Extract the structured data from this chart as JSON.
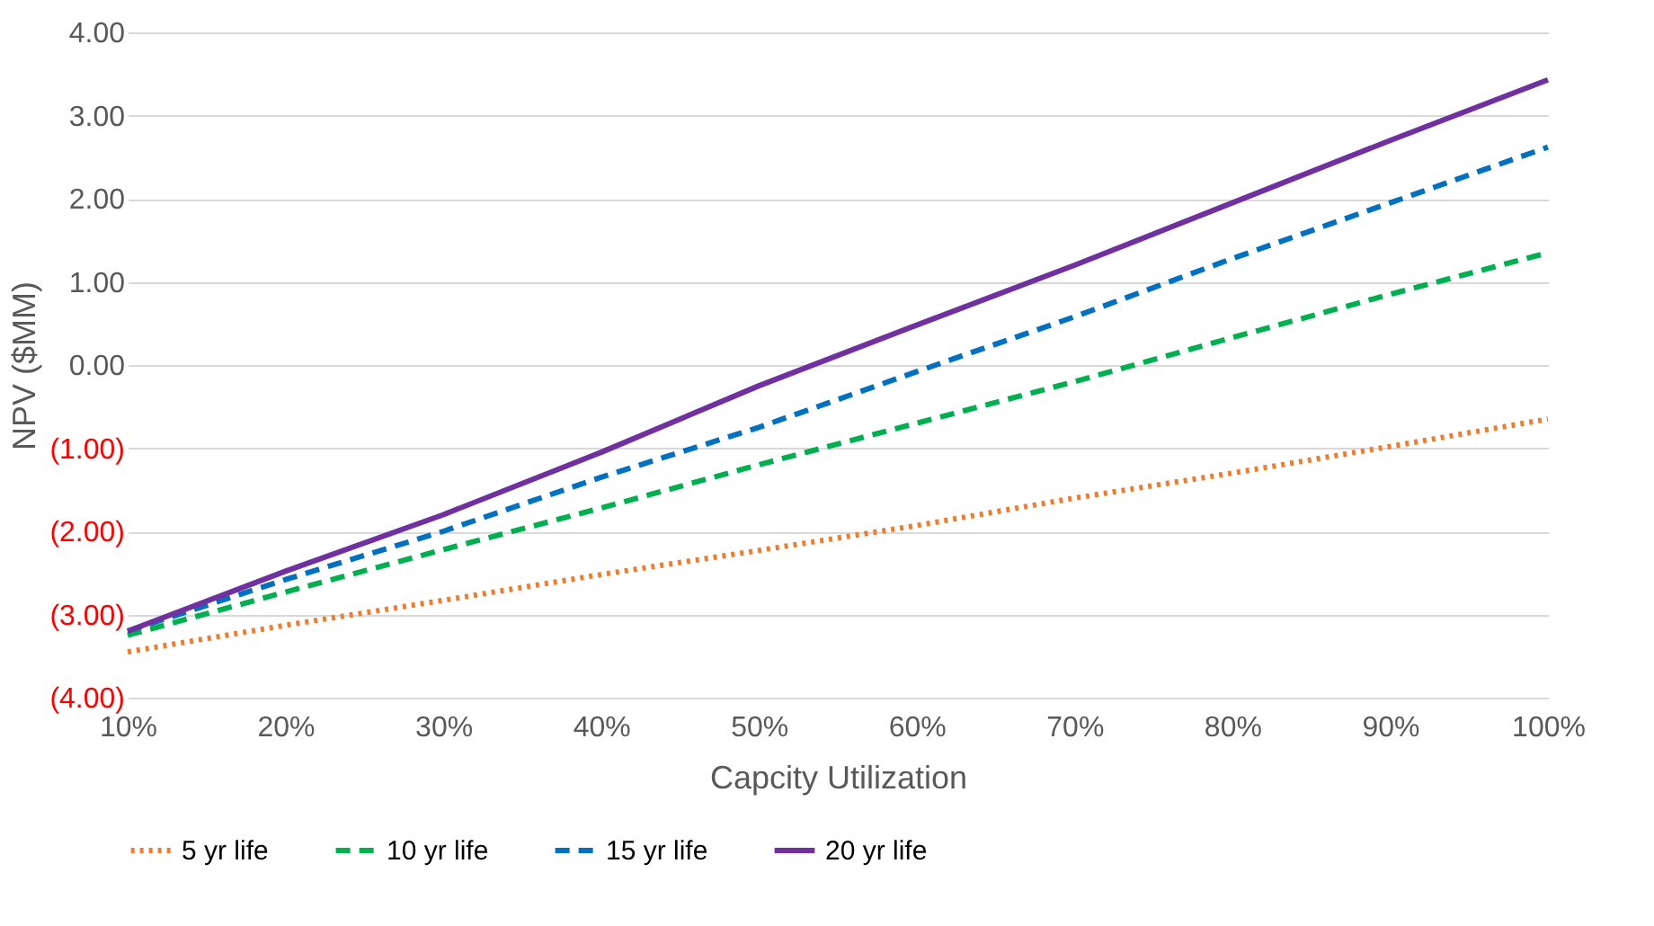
{
  "chart_data": {
    "type": "line",
    "xlabel": "Capcity Utilization",
    "ylabel": "NPV ($MM)",
    "x": [
      10,
      20,
      30,
      40,
      50,
      60,
      70,
      80,
      90,
      100
    ],
    "xlim": [
      10,
      100
    ],
    "xticks": [
      {
        "value": 10,
        "label": "10%"
      },
      {
        "value": 20,
        "label": "20%"
      },
      {
        "value": 30,
        "label": "30%"
      },
      {
        "value": 40,
        "label": "40%"
      },
      {
        "value": 50,
        "label": "50%"
      },
      {
        "value": 60,
        "label": "60%"
      },
      {
        "value": 70,
        "label": "70%"
      },
      {
        "value": 80,
        "label": "80%"
      },
      {
        "value": 90,
        "label": "90%"
      },
      {
        "value": 100,
        "label": "100%"
      }
    ],
    "ylim": [
      -4,
      4
    ],
    "yticks": [
      {
        "value": -4,
        "label": "(4.00)"
      },
      {
        "value": -3,
        "label": "(3.00)"
      },
      {
        "value": -2,
        "label": "(2.00)"
      },
      {
        "value": -1,
        "label": "(1.00)"
      },
      {
        "value": 0,
        "label": "0.00"
      },
      {
        "value": 1,
        "label": "1.00"
      },
      {
        "value": 2,
        "label": "2.00"
      },
      {
        "value": 3,
        "label": "3.00"
      },
      {
        "value": 4,
        "label": "4.00"
      }
    ],
    "series": [
      {
        "name": "5 yr life",
        "color": "#ed7d31",
        "line_style": "dotted",
        "values": [
          -3.45,
          -3.13,
          -2.83,
          -2.52,
          -2.23,
          -1.93,
          -1.6,
          -1.3,
          -0.98,
          -0.65
        ]
      },
      {
        "name": "10 yr life",
        "color": "#00b050",
        "line_style": "dashed",
        "values": [
          -3.25,
          -2.73,
          -2.22,
          -1.72,
          -1.2,
          -0.7,
          -0.2,
          0.33,
          0.85,
          1.35
        ]
      },
      {
        "name": "15 yr life",
        "color": "#0070c0",
        "line_style": "dashed",
        "values": [
          -3.2,
          -2.58,
          -2.0,
          -1.35,
          -0.75,
          -0.08,
          0.58,
          1.28,
          1.95,
          2.62
        ]
      },
      {
        "name": "20 yr life",
        "color": "#7030a0",
        "line_style": "solid",
        "values": [
          -3.2,
          -2.48,
          -1.8,
          -1.05,
          -0.25,
          0.48,
          1.2,
          1.95,
          2.7,
          3.43
        ]
      }
    ],
    "grid": "y",
    "legend": "bottom",
    "marker": "none"
  }
}
